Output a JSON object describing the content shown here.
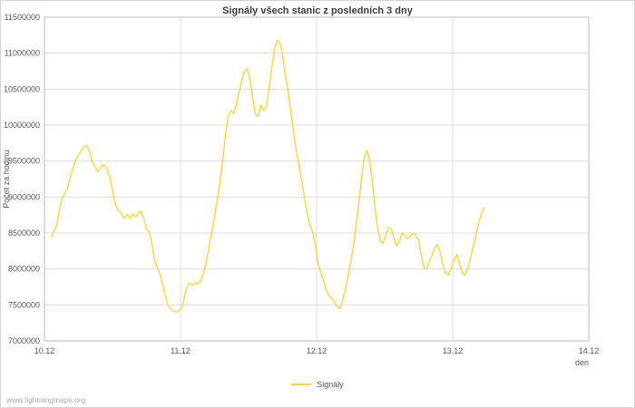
{
  "page": {
    "watermark": "www.lightningmaps.org"
  },
  "legend": {
    "label": "Signály"
  },
  "chart_data": {
    "type": "line",
    "title": "Signály všech stanic z posledních 3 dny",
    "xlabel": "den",
    "ylabel": "Počet za hodinu",
    "grid": true,
    "legend_position": "bottom-center",
    "xlim": [
      0,
      4
    ],
    "ylim": [
      7000000,
      11500000
    ],
    "xticks": [
      {
        "value": 0,
        "label": "10.12"
      },
      {
        "value": 1,
        "label": "11.12"
      },
      {
        "value": 2,
        "label": "12.12"
      },
      {
        "value": 3,
        "label": "13.12"
      },
      {
        "value": 4,
        "label": "14.12"
      }
    ],
    "yticks": [
      {
        "value": 7000000,
        "label": "7000000"
      },
      {
        "value": 7500000,
        "label": "7500000"
      },
      {
        "value": 8000000,
        "label": "8000000"
      },
      {
        "value": 8500000,
        "label": "8500000"
      },
      {
        "value": 9000000,
        "label": "9000000"
      },
      {
        "value": 9500000,
        "label": "9500000"
      },
      {
        "value": 10000000,
        "label": "10000000"
      },
      {
        "value": 10500000,
        "label": "10500000"
      },
      {
        "value": 11000000,
        "label": "11000000"
      },
      {
        "value": 11500000,
        "label": "11500000"
      }
    ],
    "colors": {
      "line": "#fcd045",
      "grid": "#dcdcdc",
      "axis": "#bbbbbb",
      "tick_text": "#555555",
      "background": "#ffffff"
    },
    "series": [
      {
        "name": "Signály",
        "color": "#fcd045",
        "points": [
          [
            0.05,
            8450000
          ],
          [
            0.07,
            8520000
          ],
          [
            0.09,
            8600000
          ],
          [
            0.11,
            8820000
          ],
          [
            0.13,
            8980000
          ],
          [
            0.15,
            9050000
          ],
          [
            0.17,
            9120000
          ],
          [
            0.19,
            9280000
          ],
          [
            0.21,
            9400000
          ],
          [
            0.23,
            9520000
          ],
          [
            0.25,
            9580000
          ],
          [
            0.27,
            9650000
          ],
          [
            0.29,
            9700000
          ],
          [
            0.31,
            9720000
          ],
          [
            0.33,
            9650000
          ],
          [
            0.35,
            9500000
          ],
          [
            0.37,
            9420000
          ],
          [
            0.39,
            9350000
          ],
          [
            0.41,
            9400000
          ],
          [
            0.43,
            9450000
          ],
          [
            0.45,
            9420000
          ],
          [
            0.47,
            9350000
          ],
          [
            0.49,
            9200000
          ],
          [
            0.51,
            9000000
          ],
          [
            0.53,
            8850000
          ],
          [
            0.55,
            8800000
          ],
          [
            0.57,
            8750000
          ],
          [
            0.59,
            8700000
          ],
          [
            0.61,
            8760000
          ],
          [
            0.63,
            8700000
          ],
          [
            0.65,
            8760000
          ],
          [
            0.67,
            8720000
          ],
          [
            0.69,
            8780000
          ],
          [
            0.71,
            8800000
          ],
          [
            0.73,
            8700000
          ],
          [
            0.75,
            8550000
          ],
          [
            0.77,
            8520000
          ],
          [
            0.79,
            8350000
          ],
          [
            0.81,
            8120000
          ],
          [
            0.83,
            8020000
          ],
          [
            0.85,
            7920000
          ],
          [
            0.87,
            7780000
          ],
          [
            0.89,
            7620000
          ],
          [
            0.91,
            7500000
          ],
          [
            0.93,
            7440000
          ],
          [
            0.95,
            7410000
          ],
          [
            0.97,
            7400000
          ],
          [
            0.99,
            7420000
          ],
          [
            1.01,
            7460000
          ],
          [
            1.03,
            7620000
          ],
          [
            1.05,
            7760000
          ],
          [
            1.07,
            7800000
          ],
          [
            1.09,
            7770000
          ],
          [
            1.11,
            7810000
          ],
          [
            1.13,
            7790000
          ],
          [
            1.15,
            7840000
          ],
          [
            1.17,
            7950000
          ],
          [
            1.19,
            8100000
          ],
          [
            1.21,
            8300000
          ],
          [
            1.23,
            8520000
          ],
          [
            1.25,
            8720000
          ],
          [
            1.27,
            8950000
          ],
          [
            1.29,
            9200000
          ],
          [
            1.31,
            9500000
          ],
          [
            1.33,
            9850000
          ],
          [
            1.35,
            10120000
          ],
          [
            1.37,
            10200000
          ],
          [
            1.39,
            10160000
          ],
          [
            1.41,
            10280000
          ],
          [
            1.43,
            10450000
          ],
          [
            1.45,
            10620000
          ],
          [
            1.47,
            10750000
          ],
          [
            1.49,
            10780000
          ],
          [
            1.51,
            10650000
          ],
          [
            1.53,
            10380000
          ],
          [
            1.55,
            10150000
          ],
          [
            1.57,
            10120000
          ],
          [
            1.59,
            10280000
          ],
          [
            1.61,
            10200000
          ],
          [
            1.63,
            10250000
          ],
          [
            1.65,
            10500000
          ],
          [
            1.67,
            10780000
          ],
          [
            1.69,
            11050000
          ],
          [
            1.71,
            11180000
          ],
          [
            1.73,
            11150000
          ],
          [
            1.75,
            10980000
          ],
          [
            1.77,
            10700000
          ],
          [
            1.79,
            10480000
          ],
          [
            1.81,
            10200000
          ],
          [
            1.83,
            9920000
          ],
          [
            1.85,
            9650000
          ],
          [
            1.87,
            9450000
          ],
          [
            1.89,
            9250000
          ],
          [
            1.91,
            9000000
          ],
          [
            1.93,
            8780000
          ],
          [
            1.95,
            8620000
          ],
          [
            1.97,
            8520000
          ],
          [
            1.99,
            8350000
          ],
          [
            2.01,
            8100000
          ],
          [
            2.03,
            7950000
          ],
          [
            2.05,
            7850000
          ],
          [
            2.07,
            7720000
          ],
          [
            2.09,
            7630000
          ],
          [
            2.11,
            7600000
          ],
          [
            2.13,
            7550000
          ],
          [
            2.15,
            7480000
          ],
          [
            2.17,
            7450000
          ],
          [
            2.19,
            7550000
          ],
          [
            2.21,
            7700000
          ],
          [
            2.23,
            7880000
          ],
          [
            2.25,
            8080000
          ],
          [
            2.27,
            8300000
          ],
          [
            2.29,
            8600000
          ],
          [
            2.31,
            8900000
          ],
          [
            2.33,
            9250000
          ],
          [
            2.35,
            9550000
          ],
          [
            2.37,
            9650000
          ],
          [
            2.39,
            9520000
          ],
          [
            2.41,
            9200000
          ],
          [
            2.43,
            8850000
          ],
          [
            2.45,
            8550000
          ],
          [
            2.47,
            8380000
          ],
          [
            2.49,
            8360000
          ],
          [
            2.51,
            8480000
          ],
          [
            2.53,
            8580000
          ],
          [
            2.55,
            8550000
          ],
          [
            2.57,
            8420000
          ],
          [
            2.59,
            8320000
          ],
          [
            2.61,
            8400000
          ],
          [
            2.63,
            8500000
          ],
          [
            2.65,
            8460000
          ],
          [
            2.67,
            8420000
          ],
          [
            2.69,
            8460000
          ],
          [
            2.71,
            8500000
          ],
          [
            2.73,
            8460000
          ],
          [
            2.75,
            8400000
          ],
          [
            2.77,
            8180000
          ],
          [
            2.79,
            8020000
          ],
          [
            2.81,
            8000000
          ],
          [
            2.83,
            8100000
          ],
          [
            2.85,
            8200000
          ],
          [
            2.87,
            8300000
          ],
          [
            2.89,
            8340000
          ],
          [
            2.91,
            8220000
          ],
          [
            2.93,
            8050000
          ],
          [
            2.95,
            7940000
          ],
          [
            2.97,
            7920000
          ],
          [
            2.99,
            8020000
          ],
          [
            3.01,
            8120000
          ],
          [
            3.03,
            8200000
          ],
          [
            3.05,
            8080000
          ],
          [
            3.07,
            7950000
          ],
          [
            3.09,
            7910000
          ],
          [
            3.11,
            8000000
          ],
          [
            3.13,
            8140000
          ],
          [
            3.15,
            8300000
          ],
          [
            3.17,
            8460000
          ],
          [
            3.19,
            8620000
          ],
          [
            3.21,
            8760000
          ],
          [
            3.23,
            8850000
          ]
        ]
      }
    ]
  }
}
